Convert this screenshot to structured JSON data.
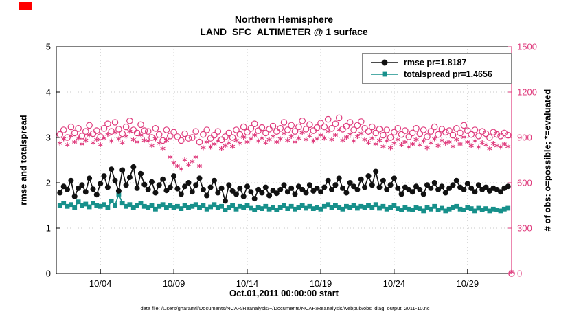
{
  "colors": {
    "accent": "#df3a7c",
    "teal": "#17908b",
    "black": "#111111",
    "axis": "#000000",
    "grid": "#c9c9c9",
    "artifact_red": "#ff0000"
  },
  "chart": {
    "title1": "Northern Hemisphere",
    "title2": "LAND_SFC_ALTIMETER @ 1 surface",
    "xlabel": "Oct.01,2011 00:00:00 start",
    "ylabel_left": "rmse and totalspread",
    "ylabel_right": "# of obs: o=possible; *=evaluated",
    "footer": "data file: /Users/gharamti/Documents/NCAR/Reanalysis/~/Documents/NCAR/Reanalysis/webpub/obs_diag_output_2011-10.nc",
    "legend": [
      {
        "label": "rmse pr=1.8187",
        "series_index": 3
      },
      {
        "label": "totalspread pr=1.4656",
        "series_index": 2
      }
    ]
  },
  "chart_data": {
    "type": "line",
    "x_axis": "days since Oct.01,2011 00:00:00",
    "x_start": 0.25,
    "x_step": 0.25,
    "xlim": [
      0,
      31
    ],
    "ylim_left": [
      0,
      5
    ],
    "ylim_right": [
      0,
      1500
    ],
    "yticks_left": [
      0,
      1,
      2,
      3,
      4,
      5
    ],
    "yticks_right": [
      0,
      300,
      600,
      900,
      1200,
      1500
    ],
    "xticks": {
      "positions": [
        3,
        8,
        13,
        18,
        23,
        28
      ],
      "labels": [
        "10/04",
        "10/09",
        "10/14",
        "10/19",
        "10/24",
        "10/29"
      ]
    },
    "grid": true,
    "series": [
      {
        "name": "possible obs",
        "axis": "right",
        "color": "#df3a7c",
        "marker": "open-circle",
        "line": false,
        "values": [
          920,
          950,
          900,
          970,
          930,
          960,
          910,
          940,
          980,
          925,
          945,
          905,
          960,
          990,
          940,
          1000,
          955,
          925,
          970,
          1010,
          950,
          930,
          985,
          945,
          940,
          900,
          960,
          920,
          880,
          950,
          910,
          935,
          905,
          880,
          925,
          895,
          900,
          940,
          870,
          920,
          950,
          895,
          915,
          940,
          885,
          905,
          930,
          900,
          950,
          920,
          970,
          935,
          960,
          990,
          945,
          965,
          930,
          955,
          975,
          940,
          960,
          1000,
          950,
          980,
          940,
          970,
          1010,
          955,
          985,
          945,
          965,
          995,
          970,
          1020,
          960,
          990,
          1030,
          955,
          975,
          1000,
          950,
          980,
          1005,
          960,
          940,
          970,
          930,
          955,
          915,
          950,
          900,
          935,
          960,
          920,
          945,
          905,
          930,
          960,
          925,
          950,
          905,
          940,
          970,
          920,
          955,
          935,
          945,
          915,
          960,
          930,
          980,
          945,
          920,
          950,
          910,
          940,
          925,
          900,
          935,
          920,
          910,
          930,
          915,
          0
        ]
      },
      {
        "name": "evaluated obs",
        "axis": "right",
        "color": "#df3a7c",
        "marker": "asterisk",
        "line": false,
        "values": [
          850,
          880,
          840,
          900,
          860,
          885,
          845,
          870,
          905,
          855,
          875,
          840,
          885,
          910,
          865,
          920,
          880,
          855,
          895,
          930,
          875,
          860,
          905,
          870,
          865,
          835,
          880,
          850,
          815,
          870,
          760,
          720,
          700,
          680,
          740,
          710,
          730,
          760,
          700,
          820,
          860,
          825,
          845,
          865,
          815,
          835,
          855,
          830,
          870,
          850,
          890,
          860,
          880,
          905,
          865,
          885,
          855,
          875,
          895,
          860,
          880,
          915,
          870,
          895,
          860,
          885,
          920,
          875,
          900,
          865,
          880,
          905,
          885,
          930,
          875,
          905,
          940,
          870,
          890,
          910,
          865,
          895,
          915,
          875,
          855,
          885,
          845,
          870,
          830,
          865,
          820,
          850,
          875,
          840,
          860,
          825,
          845,
          875,
          840,
          865,
          820,
          855,
          880,
          835,
          870,
          850,
          860,
          830,
          875,
          845,
          890,
          860,
          835,
          865,
          825,
          855,
          840,
          815,
          850,
          835,
          825,
          845,
          830,
          0
        ]
      },
      {
        "name": "totalspread",
        "axis": "left",
        "color": "#17908b",
        "marker": "filled-square",
        "line": true,
        "values": [
          1.5,
          1.55,
          1.48,
          1.52,
          1.46,
          1.58,
          1.5,
          1.53,
          1.47,
          1.55,
          1.5,
          1.48,
          1.52,
          1.45,
          1.6,
          1.5,
          1.75,
          1.55,
          1.48,
          1.52,
          1.46,
          1.5,
          1.55,
          1.48,
          1.45,
          1.5,
          1.42,
          1.48,
          1.52,
          1.45,
          1.5,
          1.46,
          1.48,
          1.43,
          1.5,
          1.45,
          1.48,
          1.52,
          1.45,
          1.5,
          1.42,
          1.47,
          1.52,
          1.45,
          1.48,
          1.4,
          1.45,
          1.5,
          1.42,
          1.48,
          1.45,
          1.5,
          1.44,
          1.4,
          1.46,
          1.43,
          1.48,
          1.42,
          1.45,
          1.4,
          1.45,
          1.5,
          1.43,
          1.48,
          1.42,
          1.46,
          1.5,
          1.44,
          1.48,
          1.43,
          1.46,
          1.42,
          1.48,
          1.52,
          1.45,
          1.5,
          1.46,
          1.42,
          1.48,
          1.45,
          1.5,
          1.44,
          1.48,
          1.45,
          1.5,
          1.45,
          1.52,
          1.44,
          1.48,
          1.42,
          1.46,
          1.5,
          1.43,
          1.4,
          1.45,
          1.42,
          1.4,
          1.46,
          1.43,
          1.38,
          1.45,
          1.42,
          1.48,
          1.4,
          1.44,
          1.38,
          1.42,
          1.45,
          1.48,
          1.42,
          1.4,
          1.45,
          1.43,
          1.38,
          1.44,
          1.4,
          1.43,
          1.38,
          1.42,
          1.4,
          1.38,
          1.42,
          1.44,
          null
        ]
      },
      {
        "name": "rmse",
        "axis": "left",
        "color": "#111111",
        "marker": "filled-circle",
        "line": true,
        "values": [
          1.78,
          1.92,
          1.85,
          2.05,
          1.7,
          1.88,
          1.95,
          1.8,
          2.1,
          1.86,
          1.74,
          1.98,
          2.15,
          1.9,
          2.3,
          2.05,
          1.82,
          2.28,
          1.95,
          2.12,
          2.35,
          1.88,
          2.2,
          1.96,
          1.85,
          2.02,
          1.78,
          1.95,
          2.08,
          1.83,
          1.9,
          2.15,
          1.87,
          1.75,
          1.92,
          2.0,
          1.8,
          1.95,
          2.1,
          1.85,
          1.72,
          1.9,
          2.05,
          1.78,
          1.88,
          1.6,
          1.95,
          1.82,
          1.75,
          1.88,
          1.7,
          1.92,
          1.8,
          1.65,
          1.85,
          1.78,
          1.9,
          1.72,
          1.83,
          1.77,
          1.85,
          1.95,
          1.8,
          1.88,
          1.75,
          1.92,
          1.85,
          1.78,
          1.95,
          1.82,
          1.88,
          1.8,
          1.9,
          2.05,
          1.85,
          1.95,
          2.1,
          1.88,
          1.78,
          2.0,
          1.92,
          1.85,
          2.08,
          1.9,
          2.15,
          1.95,
          2.25,
          1.9,
          2.05,
          1.85,
          1.95,
          2.1,
          1.88,
          1.75,
          1.9,
          1.85,
          1.8,
          1.92,
          1.85,
          1.75,
          1.95,
          1.88,
          2.0,
          1.85,
          1.92,
          1.78,
          1.88,
          1.95,
          2.05,
          1.9,
          1.85,
          1.98,
          1.88,
          1.8,
          1.95,
          1.85,
          1.9,
          1.82,
          1.88,
          1.85,
          1.8,
          1.88,
          1.92,
          null
        ]
      }
    ]
  }
}
